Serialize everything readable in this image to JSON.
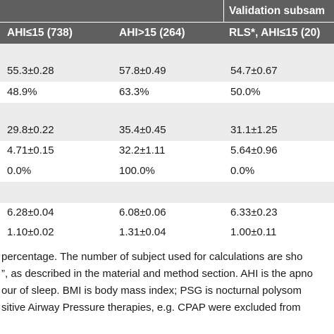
{
  "header": {
    "group_title": "Validation subsam",
    "columns": [
      "AHI≤15 (738)",
      "AHI>15 (264)",
      "RLS*, AHI≤15 (20)"
    ]
  },
  "rows": [
    {
      "c1": "",
      "c2": "",
      "c3": ""
    },
    {
      "c1": "55.3±0.28",
      "c2": "57.8±0.49",
      "c3": "54.7±0.67"
    },
    {
      "c1": "48.9%",
      "c2": "63.3%",
      "c3": "50.0%"
    },
    {
      "c1": "",
      "c2": "",
      "c3": ""
    },
    {
      "c1": "29.8±0.22",
      "c2": "35.4±0.45",
      "c3": "31.1±1.25"
    },
    {
      "c1": "4.71±0.15",
      "c2": "32.2±1.11",
      "c3": "5.64±0.96"
    },
    {
      "c1": "0.0%",
      "c2": "100.0%",
      "c3": "0.0%"
    },
    {
      "c1": "",
      "c2": "",
      "c3": ""
    },
    {
      "c1": "6.28±0.04",
      "c2": "6.08±0.06",
      "c3": "6.33±0.23"
    },
    {
      "c1": "1.10±0.02",
      "c2": "1.31±0.04",
      "c3": "1.00±0.11"
    }
  ],
  "footnote": [
    "percentage. The number of subject used for calculations are sho",
    "”, as described in the material and method section. AHI is the apno",
    "our of sleep. BMI is body mass index; PSG is nocturnal polysom",
    "sitive Airway Pressure therapies, e.g. CPAP were excluded from"
  ],
  "colors": {
    "header_bg": "#5f5f5f",
    "row_gray": "#ececec",
    "row_white": "#ffffff"
  }
}
